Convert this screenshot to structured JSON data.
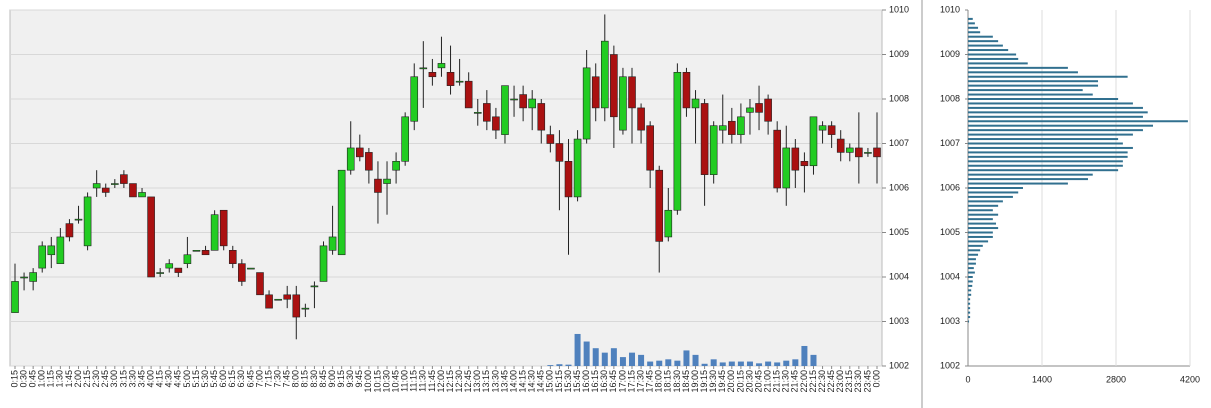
{
  "chart_data": [
    {
      "type": "candlestick",
      "categories": [
        "0:15",
        "0:30",
        "0:45",
        "1:00",
        "1:15",
        "1:30",
        "1:45",
        "2:00",
        "2:15",
        "2:30",
        "2:45",
        "3:00",
        "3:15",
        "3:30",
        "3:45",
        "4:00",
        "4:15",
        "4:30",
        "4:45",
        "5:00",
        "5:15",
        "5:30",
        "5:45",
        "6:00",
        "6:15",
        "6:30",
        "6:45",
        "7:00",
        "7:15",
        "7:30",
        "7:45",
        "8:00",
        "8:15",
        "8:30",
        "8:45",
        "9:00",
        "9:15",
        "9:30",
        "9:45",
        "10:00",
        "10:15",
        "10:30",
        "10:45",
        "11:00",
        "11:15",
        "11:30",
        "11:45",
        "12:00",
        "12:15",
        "12:30",
        "12:45",
        "13:00",
        "13:15",
        "13:30",
        "13:45",
        "14:00",
        "14:15",
        "14:30",
        "14:45",
        "15:00",
        "15:15",
        "15:30",
        "15:45",
        "16:00",
        "16:15",
        "16:30",
        "16:45",
        "17:00",
        "17:15",
        "17:30",
        "17:45",
        "18:00",
        "18:15",
        "18:30",
        "18:45",
        "19:00",
        "19:15",
        "19:30",
        "19:45",
        "20:00",
        "20:15",
        "20:30",
        "20:45",
        "21:00",
        "21:15",
        "21:30",
        "21:45",
        "22:00",
        "22:15",
        "22:30",
        "22:45",
        "23:00",
        "23:15",
        "23:30",
        "23:45",
        "0:00"
      ],
      "open": [
        1003.2,
        1004.0,
        1003.9,
        1004.2,
        1004.5,
        1004.3,
        1005.2,
        1005.3,
        1004.7,
        1006.0,
        1006.0,
        1006.1,
        1006.3,
        1006.1,
        1005.8,
        1005.8,
        1004.1,
        1004.2,
        1004.2,
        1004.3,
        1004.6,
        1004.6,
        1004.6,
        1005.5,
        1004.6,
        1004.3,
        1004.2,
        1004.1,
        1003.6,
        1003.5,
        1003.6,
        1003.6,
        1003.3,
        1003.8,
        1003.9,
        1004.6,
        1004.5,
        1006.4,
        1006.9,
        1006.8,
        1006.2,
        1006.1,
        1006.4,
        1006.6,
        1007.5,
        1008.7,
        1008.6,
        1008.7,
        1008.6,
        1008.4,
        1008.4,
        1007.7,
        1007.9,
        1007.6,
        1007.2,
        1008.0,
        1008.1,
        1007.8,
        1007.9,
        1007.2,
        1007.0,
        1006.6,
        1005.8,
        1007.1,
        1008.5,
        1007.8,
        1009.0,
        1007.3,
        1008.5,
        1007.8,
        1007.4,
        1006.4,
        1004.9,
        1005.5,
        1008.6,
        1007.8,
        1007.9,
        1006.3,
        1007.3,
        1007.5,
        1007.2,
        1007.7,
        1007.9,
        1008.0,
        1007.3,
        1006.0,
        1006.9,
        1006.6,
        1006.5,
        1007.3,
        1007.4,
        1007.1,
        1006.8,
        1006.9,
        1006.8,
        1006.9
      ],
      "high": [
        1004.3,
        1004.1,
        1004.2,
        1004.8,
        1004.9,
        1005.1,
        1005.3,
        1005.6,
        1005.9,
        1006.4,
        1006.1,
        1006.2,
        1006.4,
        1006.1,
        1006.0,
        1005.8,
        1004.2,
        1004.4,
        1004.2,
        1004.9,
        1004.6,
        1004.7,
        1005.5,
        1005.5,
        1004.7,
        1004.4,
        1004.2,
        1004.1,
        1003.7,
        1003.5,
        1003.8,
        1003.8,
        1003.4,
        1003.9,
        1004.8,
        1005.6,
        1006.4,
        1007.5,
        1007.2,
        1006.9,
        1006.6,
        1006.6,
        1006.8,
        1007.7,
        1008.8,
        1009.3,
        1008.9,
        1009.4,
        1009.2,
        1008.9,
        1008.6,
        1008.0,
        1008.2,
        1007.8,
        1008.3,
        1008.3,
        1008.3,
        1008.2,
        1008.0,
        1007.4,
        1007.3,
        1007.1,
        1007.3,
        1009.1,
        1008.8,
        1009.9,
        1009.2,
        1008.7,
        1008.7,
        1007.9,
        1007.5,
        1006.5,
        1006.0,
        1008.8,
        1008.7,
        1008.2,
        1008.0,
        1007.5,
        1008.1,
        1007.8,
        1007.9,
        1008.0,
        1008.3,
        1008.1,
        1007.5,
        1007.4,
        1007.1,
        1006.8,
        1007.6,
        1007.5,
        1007.5,
        1007.3,
        1007.0,
        1007.7,
        1006.9,
        1007.7
      ],
      "low": [
        1003.2,
        1003.7,
        1003.7,
        1004.1,
        1004.2,
        1004.3,
        1004.8,
        1005.2,
        1004.6,
        1005.8,
        1005.8,
        1006.0,
        1006.0,
        1005.8,
        1005.8,
        1004.0,
        1004.0,
        1004.1,
        1004.0,
        1004.2,
        1004.6,
        1004.5,
        1004.6,
        1004.6,
        1004.2,
        1003.8,
        1004.2,
        1003.6,
        1003.3,
        1003.5,
        1003.3,
        1002.6,
        1003.1,
        1003.3,
        1003.9,
        1004.5,
        1004.5,
        1006.3,
        1006.6,
        1006.1,
        1005.2,
        1005.4,
        1006.1,
        1006.5,
        1007.3,
        1007.8,
        1008.3,
        1008.5,
        1008.1,
        1008.3,
        1007.8,
        1007.4,
        1007.3,
        1007.1,
        1007.0,
        1007.6,
        1007.5,
        1007.3,
        1007.0,
        1006.8,
        1005.5,
        1004.5,
        1005.7,
        1007.0,
        1007.5,
        1007.5,
        1006.9,
        1007.2,
        1007.0,
        1007.0,
        1006.0,
        1004.1,
        1004.8,
        1005.4,
        1007.6,
        1007.0,
        1005.6,
        1006.1,
        1007.0,
        1007.0,
        1007.0,
        1007.2,
        1007.3,
        1007.2,
        1005.9,
        1005.6,
        1006.0,
        1005.9,
        1006.3,
        1007.0,
        1006.9,
        1006.6,
        1006.6,
        1006.1,
        1006.7,
        1006.1
      ],
      "close": [
        1003.9,
        1004.0,
        1004.1,
        1004.7,
        1004.7,
        1004.9,
        1004.9,
        1005.3,
        1005.8,
        1006.1,
        1005.9,
        1006.1,
        1006.1,
        1005.8,
        1005.9,
        1004.0,
        1004.1,
        1004.3,
        1004.1,
        1004.5,
        1004.6,
        1004.5,
        1005.4,
        1004.7,
        1004.3,
        1003.9,
        1004.2,
        1003.6,
        1003.3,
        1003.5,
        1003.5,
        1003.1,
        1003.3,
        1003.8,
        1004.7,
        1004.9,
        1006.4,
        1006.9,
        1006.7,
        1006.4,
        1005.9,
        1006.2,
        1006.6,
        1007.6,
        1008.5,
        1008.7,
        1008.5,
        1008.8,
        1008.3,
        1008.4,
        1007.8,
        1007.7,
        1007.5,
        1007.3,
        1008.3,
        1008.0,
        1007.8,
        1008.0,
        1007.3,
        1007.0,
        1006.6,
        1005.8,
        1007.1,
        1008.7,
        1007.8,
        1009.3,
        1007.6,
        1008.5,
        1007.8,
        1007.3,
        1006.4,
        1004.8,
        1005.5,
        1008.6,
        1007.8,
        1008.0,
        1006.3,
        1007.4,
        1007.4,
        1007.2,
        1007.6,
        1007.8,
        1007.7,
        1007.5,
        1006.0,
        1006.9,
        1006.4,
        1006.5,
        1007.6,
        1007.4,
        1007.2,
        1006.8,
        1006.9,
        1006.7,
        1006.8,
        1006.7
      ],
      "volume": [
        null,
        null,
        null,
        null,
        null,
        null,
        null,
        null,
        null,
        null,
        null,
        null,
        null,
        null,
        null,
        null,
        null,
        null,
        null,
        null,
        null,
        null,
        null,
        null,
        null,
        null,
        null,
        null,
        null,
        null,
        null,
        null,
        null,
        null,
        null,
        null,
        null,
        null,
        null,
        null,
        null,
        null,
        null,
        null,
        null,
        null,
        null,
        null,
        null,
        null,
        null,
        null,
        null,
        null,
        null,
        null,
        null,
        null,
        null,
        0.02,
        0.04,
        0.03,
        0.72,
        0.55,
        0.4,
        0.3,
        0.4,
        0.2,
        0.3,
        0.25,
        0.1,
        0.12,
        0.15,
        0.12,
        0.35,
        0.25,
        0.05,
        0.15,
        0.08,
        0.1,
        0.1,
        0.1,
        0.06,
        0.1,
        0.08,
        0.12,
        0.15,
        0.45,
        0.25,
        null,
        null,
        null,
        null,
        null,
        null,
        null
      ],
      "up_color": "#22cc22",
      "down_color": "#aa1111",
      "volume_color": "#4f81bd",
      "ylim": [
        1002,
        1010
      ],
      "yticks": [
        1002,
        1003,
        1004,
        1005,
        1006,
        1007,
        1008,
        1009,
        1010
      ],
      "grid": true
    },
    {
      "type": "barh",
      "levels": [
        1003.0,
        1003.1,
        1003.2,
        1003.3,
        1003.4,
        1003.5,
        1003.6,
        1003.7,
        1003.8,
        1003.9,
        1004.0,
        1004.1,
        1004.2,
        1004.3,
        1004.4,
        1004.5,
        1004.6,
        1004.7,
        1004.8,
        1004.9,
        1005.0,
        1005.1,
        1005.2,
        1005.3,
        1005.4,
        1005.5,
        1005.6,
        1005.7,
        1005.8,
        1005.9,
        1006.0,
        1006.1,
        1006.2,
        1006.3,
        1006.4,
        1006.5,
        1006.6,
        1006.7,
        1006.8,
        1006.9,
        1007.0,
        1007.1,
        1007.2,
        1007.3,
        1007.4,
        1007.5,
        1007.6,
        1007.7,
        1007.8,
        1007.9,
        1008.0,
        1008.1,
        1008.2,
        1008.3,
        1008.4,
        1008.5,
        1008.6,
        1008.7,
        1008.8,
        1008.9,
        1009.0,
        1009.1,
        1009.2,
        1009.3,
        1009.4,
        1009.5,
        1009.6,
        1009.7,
        1009.8
      ],
      "values": [
        20,
        40,
        40,
        40,
        40,
        40,
        60,
        60,
        80,
        90,
        90,
        130,
        110,
        150,
        150,
        190,
        230,
        280,
        380,
        470,
        470,
        570,
        530,
        470,
        570,
        470,
        570,
        660,
        850,
        950,
        1040,
        1890,
        2270,
        2360,
        2840,
        2930,
        2930,
        3020,
        3020,
        3120,
        2930,
        2840,
        3120,
        3310,
        3500,
        4160,
        3310,
        3400,
        3310,
        3120,
        2840,
        2360,
        2170,
        2460,
        2460,
        3020,
        2080,
        1890,
        1130,
        950,
        910,
        760,
        660,
        570,
        470,
        230,
        190,
        130,
        90
      ],
      "color": "#31708f",
      "xlim": [
        0,
        4200
      ],
      "xticks": [
        0,
        1400,
        2800,
        4200
      ],
      "ylim": [
        1002,
        1010
      ],
      "yticks": [
        1002,
        1003,
        1004,
        1005,
        1006,
        1007,
        1008,
        1009,
        1010
      ],
      "grid": true
    }
  ]
}
